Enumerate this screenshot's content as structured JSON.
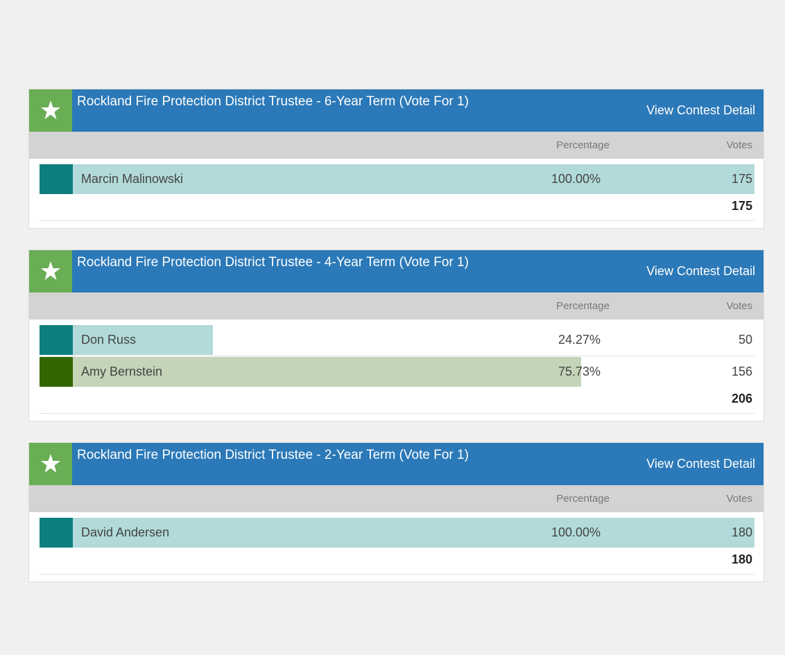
{
  "contests": [
    {
      "title": "Rockland Fire Protection District Trustee - 6-Year Term (Vote For 1)",
      "link": "View Contest Detail",
      "headers": [
        "Percentage",
        "Votes"
      ],
      "candidates": [
        {
          "name": "Marcin Malinowski",
          "percentage": {
            "value": 100.0,
            "label": "100.00%"
          },
          "votes": 175,
          "color": "#0e7f7f",
          "bar_color": "#b2dada"
        }
      ],
      "total": 175
    },
    {
      "title": "Rockland Fire Protection District Trustee - 4-Year Term (Vote For 1)",
      "link": "View Contest Detail",
      "headers": [
        "Percentage",
        "Votes"
      ],
      "candidates": [
        {
          "name": "Don Russ",
          "percentage": {
            "value": 24.27,
            "label": "24.27%"
          },
          "votes": 50,
          "color": "#0e7f7f",
          "bar_color": "#b2dada"
        },
        {
          "name": "Amy Bernstein",
          "percentage": {
            "value": 75.73,
            "label": "75.73%"
          },
          "votes": 156,
          "color": "#336600",
          "bar_color": "#c4d4b8"
        }
      ],
      "total": 206
    },
    {
      "title": "Rockland Fire Protection District Trustee - 2-Year Term (Vote For 1)",
      "link": "View Contest Detail",
      "headers": [
        "Percentage",
        "Votes"
      ],
      "candidates": [
        {
          "name": "David Andersen",
          "percentage": {
            "value": 100.0,
            "label": "100.00%"
          },
          "votes": 180,
          "color": "#0e7f7f",
          "bar_color": "#b2dada"
        }
      ],
      "total": 180
    }
  ]
}
